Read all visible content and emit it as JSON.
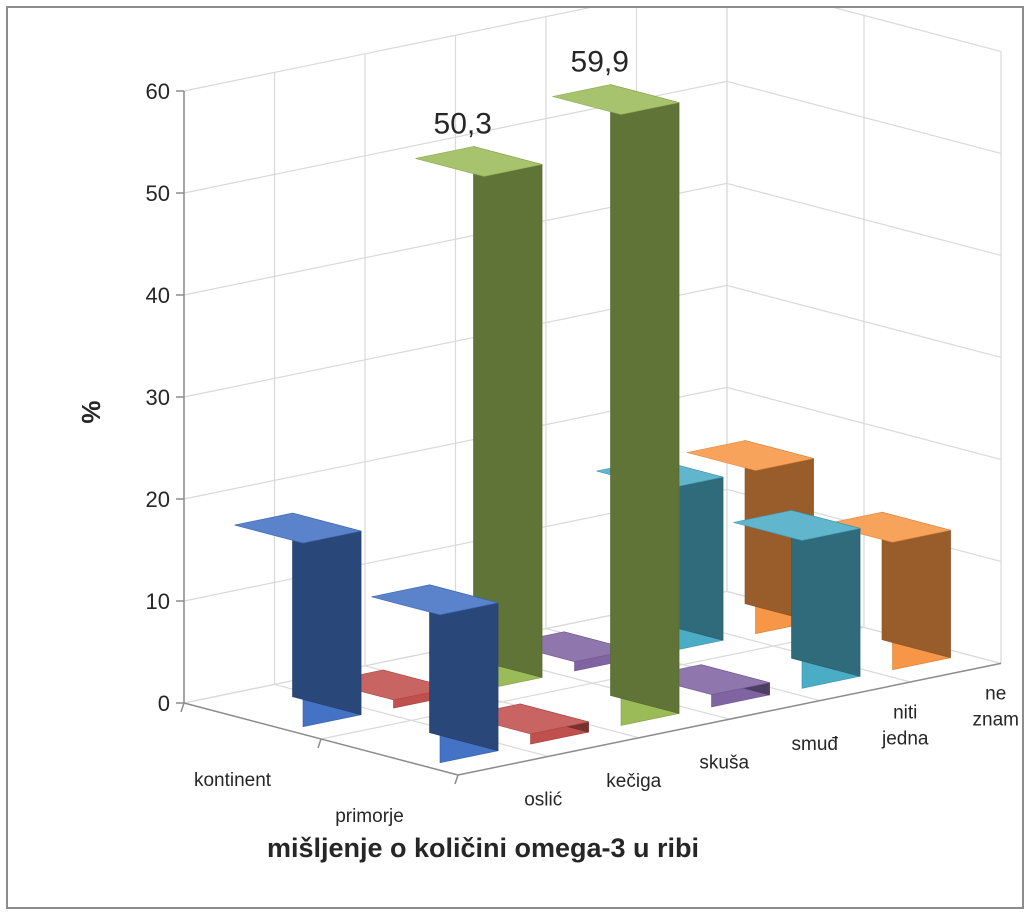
{
  "chart_data": {
    "type": "bar",
    "subtype": "3d-column",
    "title": "",
    "xlabel": "mišljenje o količini omega-3 u ribi",
    "ylabel": "%",
    "ylim": [
      0,
      60
    ],
    "yticks": [
      "0",
      "10",
      "20",
      "30",
      "40",
      "50",
      "60"
    ],
    "grid": true,
    "categories": [
      "kontinent",
      "primorje"
    ],
    "series": [
      {
        "name": "oslić",
        "values": [
          18.0,
          14.5
        ],
        "color": "#4472c4"
      },
      {
        "name": "kečiga",
        "values": [
          0.8,
          1.0
        ],
        "color": "#c0504d"
      },
      {
        "name": "skuša",
        "values": [
          50.3,
          59.9
        ],
        "color": "#9bbb59"
      },
      {
        "name": "smuđ",
        "values": [
          0.9,
          1.2
        ],
        "color": "#8064a2"
      },
      {
        "name": "niti jedna",
        "values": [
          16.0,
          14.5
        ],
        "color": "#4bacc6"
      },
      {
        "name": "ne znam",
        "values": [
          16.0,
          12.5
        ],
        "color": "#f79646"
      }
    ],
    "series_axis_labels": [
      {
        "lines": [
          "oslić"
        ]
      },
      {
        "lines": [
          "kečiga"
        ]
      },
      {
        "lines": [
          "skuša"
        ]
      },
      {
        "lines": [
          "smuđ"
        ]
      },
      {
        "lines": [
          "niti",
          "jedna"
        ]
      },
      {
        "lines": [
          "ne",
          "znam"
        ]
      }
    ],
    "data_labels": [
      {
        "series": 2,
        "category": 0,
        "text": "50,3"
      },
      {
        "series": 2,
        "category": 1,
        "text": "59,9"
      }
    ]
  }
}
